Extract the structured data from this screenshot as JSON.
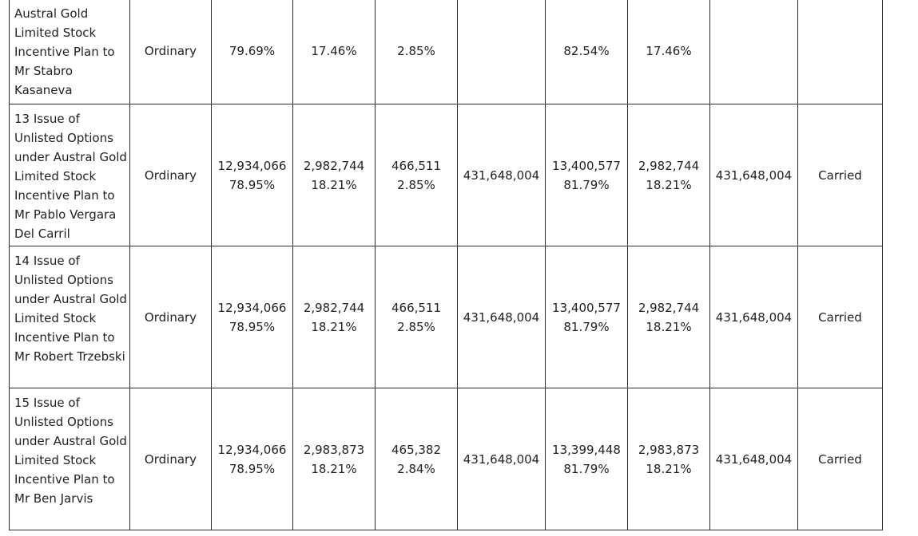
{
  "rows": [
    {
      "resolution": "Austral Gold Limited Stock Incentive Plan to Mr Stabro Kasaneva",
      "class": "Ordinary",
      "for": {
        "votes": "",
        "pct": "79.69%"
      },
      "against": {
        "votes": "",
        "pct": "17.46%"
      },
      "discretionary": {
        "votes": "",
        "pct": "2.85%"
      },
      "abstain": "",
      "poll_for": {
        "votes": "",
        "pct": "82.54%"
      },
      "poll_against": {
        "votes": "",
        "pct": "17.46%"
      },
      "poll_abstain": "",
      "result": ""
    },
    {
      "resolution": "13 Issue of Unlisted Options under Austral Gold Limited Stock Incentive Plan to Mr Pablo Vergara Del Carril",
      "class": "Ordinary",
      "for": {
        "votes": "12,934,066",
        "pct": "78.95%"
      },
      "against": {
        "votes": "2,982,744",
        "pct": "18.21%"
      },
      "discretionary": {
        "votes": "466,511",
        "pct": "2.85%"
      },
      "abstain": "431,648,004",
      "poll_for": {
        "votes": "13,400,577",
        "pct": "81.79%"
      },
      "poll_against": {
        "votes": "2,982,744",
        "pct": "18.21%"
      },
      "poll_abstain": "431,648,004",
      "result": "Carried"
    },
    {
      "resolution": "14 Issue of Unlisted Options under Austral Gold Limited Stock Incentive Plan to Mr Robert Trzebski",
      "class": "Ordinary",
      "for": {
        "votes": "12,934,066",
        "pct": "78.95%"
      },
      "against": {
        "votes": "2,982,744",
        "pct": "18.21%"
      },
      "discretionary": {
        "votes": "466,511",
        "pct": "2.85%"
      },
      "abstain": "431,648,004",
      "poll_for": {
        "votes": "13,400,577",
        "pct": "81.79%"
      },
      "poll_against": {
        "votes": "2,982,744",
        "pct": "18.21%"
      },
      "poll_abstain": "431,648,004",
      "result": "Carried"
    },
    {
      "resolution": "15 Issue of Unlisted Options under Austral Gold Limited Stock Incentive Plan to Mr Ben Jarvis",
      "class": "Ordinary",
      "for": {
        "votes": "12,934,066",
        "pct": "78.95%"
      },
      "against": {
        "votes": "2,983,873",
        "pct": "18.21%"
      },
      "discretionary": {
        "votes": "465,382",
        "pct": "2.84%"
      },
      "abstain": "431,648,004",
      "poll_for": {
        "votes": "13,399,448",
        "pct": "81.79%"
      },
      "poll_against": {
        "votes": "2,983,873",
        "pct": "18.21%"
      },
      "poll_abstain": "431,648,004",
      "result": "Carried"
    }
  ]
}
